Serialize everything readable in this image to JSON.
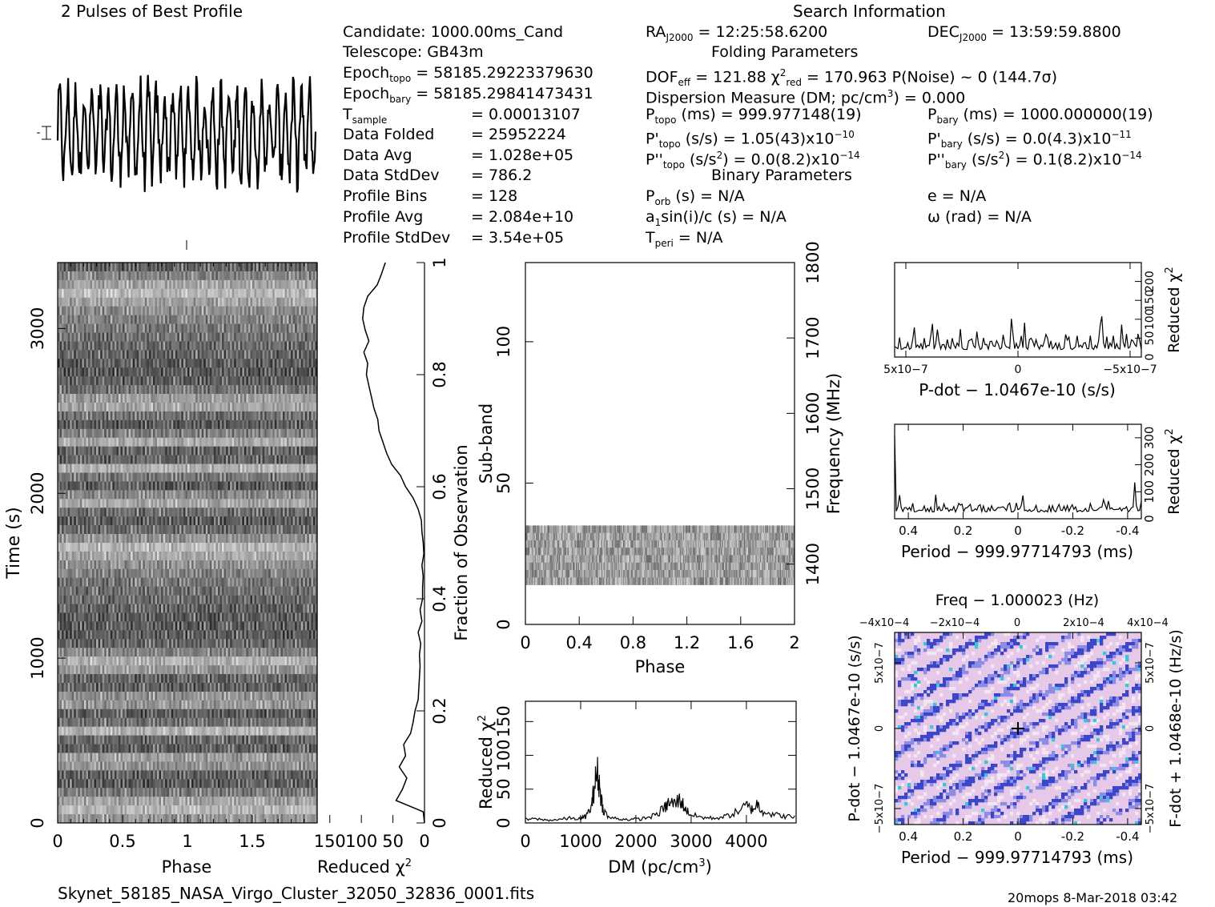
{
  "header": {
    "left_title": "2 Pulses of Best Profile",
    "right_title": "Search Information",
    "folding_title": "Folding Parameters",
    "binary_title": "Binary Parameters"
  },
  "info": {
    "candidate": "Candidate:  1000.00ms_Cand",
    "telescope": "Telescope:  GB43m",
    "epoch_topo_label": "Epoch",
    "epoch_topo_sub": "topo",
    "epoch_topo_val": " = 58185.29223379630",
    "epoch_bary_label": "Epoch",
    "epoch_bary_sub": "bary",
    "epoch_bary_val": " = 58185.29841473431",
    "tsample_label": "T",
    "tsample_sub": "sample",
    "tsample_val": "=   0.00013107",
    "data_folded_label": "Data Folded",
    "data_folded_val": "=   25952224",
    "data_avg_label": "Data Avg",
    "data_avg_val": "=   1.028e+05",
    "data_std_label": "Data StdDev",
    "data_std_val": "=   786.2",
    "profile_bins_label": "Profile Bins",
    "profile_bins_val": "=   128",
    "profile_avg_label": "Profile Avg",
    "profile_avg_val": "=   2.084e+10",
    "profile_std_label": "Profile StdDev",
    "profile_std_val": "=   3.54e+05"
  },
  "search": {
    "ra_label": "RA",
    "ra_sub": "J2000",
    "ra_val": " = 12:25:58.6200",
    "dec_label": "DEC",
    "dec_sub": "J2000",
    "dec_val": " = 13:59:59.8800",
    "dof_label": "DOF",
    "dof_sub": "eff",
    "dof_val": " = 121.88  ",
    "chi_sym": "χ",
    "chi_sup": "2",
    "chi_sub": "red",
    "chi_val": " = 170.963   P(Noise) ~ 0    (144.7σ)",
    "dm_text": "Dispersion Measure (DM; pc/cm",
    "dm_sup": "3",
    "dm_end": ") = 0.000",
    "ptopo": "P",
    "ptopo_sub": "topo",
    "ptopo_val": " (ms) =  999.977148(19)",
    "pbary": "P",
    "pbary_sub": "bary",
    "pbary_val": " (ms) =  1000.000000(19)",
    "pdtopo": "P'",
    "pdtopo_sub": "topo",
    "pdtopo_val": " (s/s) =  1.05(43)x10",
    "pdtopo_exp": "−10",
    "pdbary": "P'",
    "pdbary_sub": "bary",
    "pdbary_val": " (s/s) = 0.0(4.3)x10",
    "pdbary_exp": "−11",
    "pddtopo": "P''",
    "pddtopo_sub": "topo",
    "pddtopo_val": " (s/s",
    "pddtopo_sup": "2",
    "pddtopo_val2": ") = 0.0(8.2)x10",
    "pddtopo_exp": "−14",
    "pddbary": "P''",
    "pddbary_sub": "bary",
    "pddbary_val": " (s/s",
    "pddbary_sup": "2",
    "pddbary_val2": ") =  0.1(8.2)x10",
    "pddbary_exp": "−14",
    "porb": "P",
    "porb_sub": "orb",
    "porb_val": " (s) = N/A",
    "e_val": "e = N/A",
    "a1": "a",
    "a1_sub": "1",
    "a1_val": "sin(i)/c (s) = N/A",
    "omega_val": "ω (rad) = N/A",
    "tperi": "T",
    "tperi_sub": "peri",
    "tperi_val": " = N/A"
  },
  "footer": {
    "filename": "Skynet_58185_NASA_Virgo_Cluster_32050_32836_0001.fits",
    "stamp": "20mops  8-Mar-2018 03:42"
  },
  "chart_data": [
    {
      "type": "line",
      "name": "profile",
      "title": "2 Pulses of Best Profile",
      "xlabel": "",
      "ylabel": "",
      "x": [
        0,
        2
      ],
      "description_values": "256 bins over 2 pulses; strongly oscillating, ~16 cycles per pulse; envelope flat"
    },
    {
      "type": "heatmap",
      "name": "time-phase",
      "xlabel": "Phase",
      "ylabel": "Time (s)",
      "xticks": [
        0,
        0.5,
        1,
        1.5
      ],
      "yticks": [
        0,
        1000,
        2000,
        3000
      ],
      "xlim": [
        0,
        2
      ],
      "ylim": [
        0,
        3400
      ],
      "colors": "grayscale"
    },
    {
      "type": "line",
      "name": "time-chi2",
      "xlabel": "Reduced χ2",
      "ylabel": "Fraction of Observation",
      "xticks": [
        150,
        100,
        50,
        0
      ],
      "xtick_labels": [
        "150",
        "100",
        "50",
        "0"
      ],
      "yticks": [
        0,
        0.2,
        0.4,
        0.6,
        0.8,
        1
      ],
      "xlim": [
        170,
        0
      ],
      "ylim": [
        0,
        1
      ],
      "fraction": [
        0.0,
        0.02,
        0.04,
        0.06,
        0.08,
        0.1,
        0.12,
        0.14,
        0.16,
        0.18,
        0.2,
        0.22,
        0.24,
        0.26,
        0.28,
        0.3,
        0.32,
        0.34,
        0.36,
        0.38,
        0.4,
        0.42,
        0.44,
        0.46,
        0.48,
        0.5,
        0.52,
        0.54,
        0.56,
        0.58,
        0.6,
        0.62,
        0.64,
        0.66,
        0.68,
        0.7,
        0.72,
        0.74,
        0.76,
        0.78,
        0.8,
        0.82,
        0.84,
        0.86,
        0.88,
        0.9,
        0.92,
        0.94,
        0.96,
        0.98,
        1.0
      ],
      "chi2": [
        0,
        2,
        45,
        35,
        28,
        40,
        30,
        33,
        22,
        18,
        15,
        10,
        9,
        8,
        7,
        8,
        6,
        10,
        4,
        7,
        3,
        3,
        2,
        4,
        1,
        2,
        4,
        5,
        10,
        18,
        30,
        38,
        52,
        60,
        66,
        72,
        74,
        80,
        84,
        88,
        92,
        90,
        96,
        88,
        94,
        98,
        96,
        90,
        75,
        68,
        62
      ]
    },
    {
      "type": "heatmap",
      "name": "subband-phase",
      "xlabel": "Phase",
      "ylabel": "Sub-band",
      "y2label": "Frequency (MHz)",
      "xticks": [
        0,
        0.4,
        0.8,
        1.2,
        1.6,
        2
      ],
      "yticks": [
        0,
        50,
        100
      ],
      "y2ticks": [
        1400,
        1500,
        1600,
        1700,
        1800
      ],
      "xlim": [
        0,
        2
      ],
      "ylim": [
        0,
        128
      ],
      "y2lim": [
        1320,
        1800
      ],
      "band": [
        14,
        35
      ]
    },
    {
      "type": "line",
      "name": "dm-chi2",
      "xlabel": "DM (pc/cm3)",
      "ylabel": "Reduced χ2",
      "xticks": [
        0,
        1000,
        2000,
        3000,
        4000
      ],
      "yticks": [
        0,
        50,
        100,
        150
      ],
      "xlim": [
        0,
        4900
      ],
      "ylim": [
        0,
        180
      ],
      "dm": [
        0,
        200,
        400,
        600,
        800,
        1000,
        1100,
        1200,
        1250,
        1300,
        1350,
        1400,
        1500,
        1700,
        1900,
        2100,
        2300,
        2500,
        2600,
        2700,
        2800,
        2900,
        3000,
        3200,
        3400,
        3600,
        3800,
        4000,
        4100,
        4200,
        4300,
        4500,
        4700,
        4900
      ],
      "chi2": [
        5,
        6,
        4,
        5,
        7,
        6,
        10,
        25,
        55,
        75,
        50,
        22,
        8,
        6,
        5,
        6,
        10,
        20,
        30,
        28,
        35,
        20,
        12,
        8,
        7,
        9,
        15,
        25,
        20,
        28,
        18,
        12,
        10,
        8
      ]
    },
    {
      "type": "line",
      "name": "pdot-chi2",
      "xlabel": "P-dot - 1.0467e-10 (s/s)",
      "ylabel": "Reduced χ2",
      "xticks": [
        5e-07,
        0,
        -5e-07
      ],
      "xtick_labels": [
        "5x10−7",
        "0",
        "−5x10−7"
      ],
      "yticks": [
        0,
        50,
        100,
        150,
        200
      ],
      "ytick_labels": [
        "0",
        "50",
        "100",
        "150",
        "200"
      ],
      "xlim": [
        5.5e-07,
        -5.5e-07
      ],
      "ylim": [
        0,
        250
      ]
    },
    {
      "type": "line",
      "name": "period-chi2",
      "xlabel": "Period - 999.97714793 (ms)",
      "ylabel": "Reduced χ2",
      "xticks": [
        0.4,
        0.2,
        0,
        -0.2,
        -0.4
      ],
      "yticks": [
        0,
        100,
        200,
        300
      ],
      "xlim": [
        0.45,
        -0.45
      ],
      "ylim": [
        0,
        350
      ]
    },
    {
      "type": "heatmap",
      "name": "period-pdot",
      "title": "Freq - 1.000023 (Hz)",
      "xlabel": "Period - 999.97714793 (ms)",
      "ylabel": "P-dot - 1.0467e-10 (s/s)",
      "y2label": "F-dot + 1.0468e-10 (Hz/s)",
      "xticks": [
        0.4,
        0.2,
        0,
        -0.2,
        -0.4
      ],
      "x2ticks": [
        "−4x10−4",
        "−2x10−4",
        "0",
        "2x10−4",
        "4x10−4"
      ],
      "yticks": [
        "5x10−7",
        "0",
        "−5x10−7"
      ],
      "y2ticks": [
        "5x10−7",
        "0",
        "−5x10−7"
      ]
    }
  ],
  "labels": {
    "time_s": "Time (s)",
    "phase": "Phase",
    "reduced_chi": "Reduced χ",
    "chi_sup": "2",
    "fraction_obs": "Fraction of Observation",
    "subband": "Sub-band",
    "frequency": "Frequency (MHz)",
    "dm_axis": "DM (pc/cm",
    "dm_axis_sup": "3",
    "dm_axis_end": ")",
    "pdot_xlabel": "P-dot − 1.0467e-10 (s/s)",
    "period_xlabel": "Period − 999.97714793 (ms)",
    "freq_title": "Freq − 1.000023 (Hz)",
    "pdot_ylabel": "P-dot − 1.0467e-10 (s/s)",
    "fdot_ylabel": "F-dot + 1.0468e-10 (Hz/s)"
  }
}
